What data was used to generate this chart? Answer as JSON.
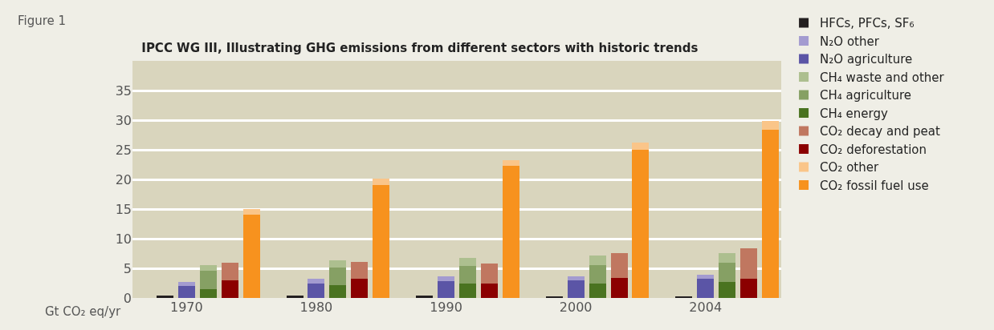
{
  "chart_data": {
    "type": "bar",
    "title": "IPCC WG III, Illustrating GHG emissions from different sectors with historic trends",
    "annotations": [
      "Figure 1"
    ],
    "ylabel": "Gt CO₂ eq/yr",
    "categories": [
      null,
      null,
      "1970",
      null,
      null,
      null,
      null,
      null,
      "1980",
      null,
      null,
      null,
      null,
      null,
      "1990",
      null,
      null,
      null,
      null,
      null,
      "2000",
      null,
      null,
      null,
      null,
      null,
      "2004",
      null,
      null,
      null
    ],
    "stacked": true,
    "ylim": [
      0,
      40
    ],
    "yticks": [
      0,
      5,
      10,
      15,
      20,
      25,
      30,
      35
    ],
    "grid": "y",
    "legend": "right",
    "series": [
      {
        "name": "HFCs, PFCs, SF₆",
        "color": "#231f20",
        "values": [
          null,
          0.4,
          null,
          null,
          null,
          null,
          null,
          0.4,
          null,
          null,
          null,
          null,
          null,
          0.4,
          null,
          null,
          null,
          null,
          null,
          0.3,
          null,
          null,
          null,
          null,
          null,
          0.3,
          null,
          null,
          null,
          null
        ]
      },
      {
        "name": "N₂O agriculture",
        "color": "#5b55a6",
        "values": [
          null,
          null,
          2.0,
          null,
          null,
          null,
          null,
          null,
          2.5,
          null,
          null,
          null,
          null,
          null,
          2.8,
          null,
          null,
          null,
          null,
          null,
          3.0,
          null,
          null,
          null,
          null,
          null,
          3.3,
          null,
          null,
          null
        ]
      },
      {
        "name": "N₂O other",
        "color": "#a39bd0",
        "values": [
          null,
          null,
          0.7,
          null,
          null,
          null,
          null,
          null,
          0.8,
          null,
          null,
          null,
          null,
          null,
          0.8,
          null,
          null,
          null,
          null,
          null,
          0.7,
          null,
          null,
          null,
          null,
          null,
          0.6,
          null,
          null,
          null
        ]
      },
      {
        "name": "CH₄ energy",
        "color": "#4a7320",
        "values": [
          null,
          null,
          null,
          1.5,
          null,
          null,
          null,
          null,
          null,
          2.1,
          null,
          null,
          null,
          null,
          null,
          2.4,
          null,
          null,
          null,
          null,
          null,
          2.5,
          null,
          null,
          null,
          null,
          null,
          2.7,
          null,
          null
        ]
      },
      {
        "name": "CH₄ agriculture",
        "color": "#86a064",
        "values": [
          null,
          null,
          null,
          3.1,
          null,
          null,
          null,
          null,
          null,
          3.0,
          null,
          null,
          null,
          null,
          null,
          3.0,
          null,
          null,
          null,
          null,
          null,
          3.0,
          null,
          null,
          null,
          null,
          null,
          3.2,
          null,
          null
        ]
      },
      {
        "name": "CH₄ waste and other",
        "color": "#adbf8f",
        "values": [
          null,
          null,
          null,
          1.0,
          null,
          null,
          null,
          null,
          null,
          1.2,
          null,
          null,
          null,
          null,
          null,
          1.3,
          null,
          null,
          null,
          null,
          null,
          1.7,
          null,
          null,
          null,
          null,
          null,
          1.7,
          null,
          null
        ]
      },
      {
        "name": "CO₂ deforestation",
        "color": "#8b0000",
        "values": [
          null,
          null,
          null,
          null,
          3.0,
          null,
          null,
          null,
          null,
          null,
          3.2,
          null,
          null,
          null,
          null,
          null,
          2.4,
          null,
          null,
          null,
          null,
          null,
          3.4,
          null,
          null,
          null,
          null,
          null,
          3.3,
          null
        ]
      },
      {
        "name": "CO₂ decay and peat",
        "color": "#c07760",
        "values": [
          null,
          null,
          null,
          null,
          3.0,
          null,
          null,
          null,
          null,
          null,
          2.9,
          null,
          null,
          null,
          null,
          null,
          3.4,
          null,
          null,
          null,
          null,
          null,
          4.2,
          null,
          null,
          null,
          null,
          null,
          5.1,
          null
        ]
      },
      {
        "name": "CO₂ fossil fuel use",
        "color": "#f7921e",
        "values": [
          null,
          null,
          null,
          null,
          null,
          14.1,
          null,
          null,
          null,
          null,
          null,
          19.1,
          null,
          null,
          null,
          null,
          null,
          22.3,
          null,
          null,
          null,
          null,
          null,
          25.0,
          null,
          null,
          null,
          null,
          null,
          28.4
        ]
      },
      {
        "name": "CO₂ other",
        "color": "#fac589",
        "values": [
          null,
          null,
          null,
          null,
          null,
          0.9,
          null,
          null,
          null,
          null,
          null,
          1.0,
          null,
          null,
          null,
          null,
          null,
          0.9,
          null,
          null,
          null,
          null,
          null,
          1.2,
          null,
          null,
          null,
          null,
          null,
          1.5
        ]
      }
    ]
  }
}
